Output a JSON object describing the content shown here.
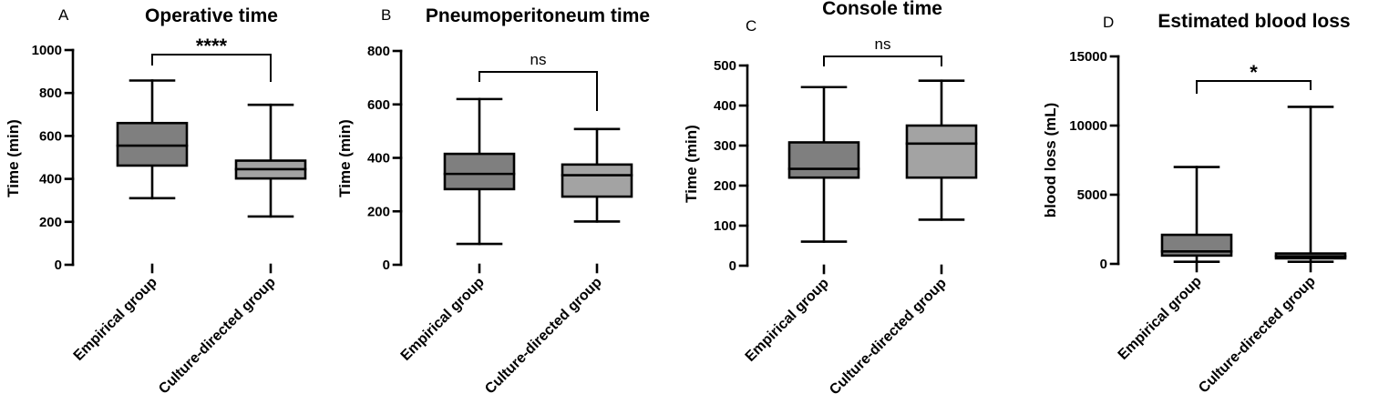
{
  "colors": {
    "box_empirical": "#7f7f7f",
    "box_culture": "#a3a3a3",
    "stroke": "#000000"
  },
  "chart_data": [
    {
      "type": "boxplot",
      "panel": "A",
      "title": "Operative time",
      "ylabel": "Time (min)",
      "ylim": [
        0,
        1000
      ],
      "yticks": [
        0,
        200,
        400,
        600,
        800,
        1000
      ],
      "ytick_labels": [
        "0",
        "200",
        "400",
        "600",
        "800",
        "1000"
      ],
      "categories": [
        "Empirical group",
        "Culture-directed group"
      ],
      "boxes": [
        {
          "min": 310,
          "q1": 462,
          "median": 555,
          "q3": 660,
          "max": 858
        },
        {
          "min": 225,
          "q1": 402,
          "median": 445,
          "q3": 485,
          "max": 745
        }
      ],
      "significance": "****"
    },
    {
      "type": "boxplot",
      "panel": "B",
      "title": "Pneumoperitoneum time",
      "ylabel": "Time (min)",
      "ylim": [
        0,
        800
      ],
      "yticks": [
        0,
        200,
        400,
        600,
        800
      ],
      "ytick_labels": [
        "0",
        "200",
        "400",
        "600",
        "800"
      ],
      "categories": [
        "Empirical group",
        "Culture-directed group"
      ],
      "boxes": [
        {
          "min": 78,
          "q1": 283,
          "median": 340,
          "q3": 415,
          "max": 620
        },
        {
          "min": 162,
          "q1": 255,
          "median": 335,
          "q3": 375,
          "max": 508
        }
      ],
      "significance": "ns"
    },
    {
      "type": "boxplot",
      "panel": "C",
      "title": "Console time",
      "ylabel": "Time (min)",
      "ylim": [
        0,
        500
      ],
      "yticks": [
        0,
        100,
        200,
        300,
        400,
        500
      ],
      "ytick_labels": [
        "0",
        "100",
        "200",
        "300",
        "400",
        "500"
      ],
      "categories": [
        "Empirical group",
        "Culture-directed group"
      ],
      "boxes": [
        {
          "min": 60,
          "q1": 220,
          "median": 242,
          "q3": 308,
          "max": 446
        },
        {
          "min": 115,
          "q1": 220,
          "median": 305,
          "q3": 350,
          "max": 462
        }
      ],
      "significance": "ns"
    },
    {
      "type": "boxplot",
      "panel": "D",
      "title": "Estimated blood loss",
      "ylabel": "blood loss (mL)",
      "ylim": [
        0,
        15000
      ],
      "yticks": [
        0,
        5000,
        10000,
        15000
      ],
      "ytick_labels": [
        "0",
        "5000",
        "10000",
        "15000"
      ],
      "categories": [
        "Empirical group",
        "Culture-directed group"
      ],
      "boxes": [
        {
          "min": 150,
          "q1": 600,
          "median": 900,
          "q3": 2100,
          "max": 7000
        },
        {
          "min": 150,
          "q1": 400,
          "median": 550,
          "q3": 750,
          "max": 11350
        }
      ],
      "significance": "*"
    }
  ]
}
